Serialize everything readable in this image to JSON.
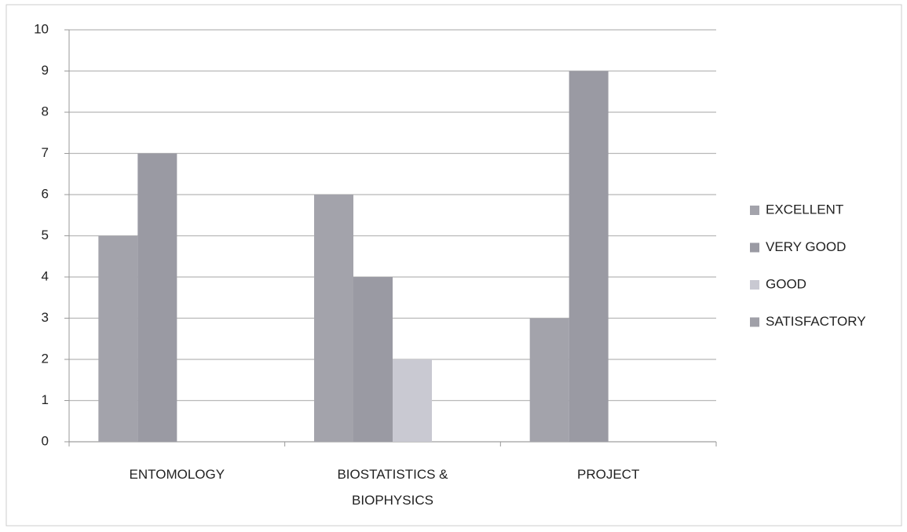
{
  "chart_data": {
    "type": "bar",
    "categories": [
      "ENTOMOLOGY",
      "BIOSTATISTICS & BIOPHYSICS",
      "PROJECT"
    ],
    "series": [
      {
        "name": "EXCELLENT",
        "color": "#a3a3ab",
        "values": [
          5,
          6,
          3
        ]
      },
      {
        "name": "VERY GOOD",
        "color": "#9a9aa3",
        "values": [
          7,
          4,
          9
        ]
      },
      {
        "name": "GOOD",
        "color": "#c9c9d2",
        "values": [
          0,
          2,
          0
        ]
      },
      {
        "name": "SATISFACTORY",
        "color": "#a0a0a8",
        "values": [
          0,
          0,
          0
        ]
      }
    ],
    "ylim": [
      0,
      10
    ],
    "yticks": [
      0,
      1,
      2,
      3,
      4,
      5,
      6,
      7,
      8,
      9,
      10
    ],
    "grid": true,
    "legend": "right"
  }
}
